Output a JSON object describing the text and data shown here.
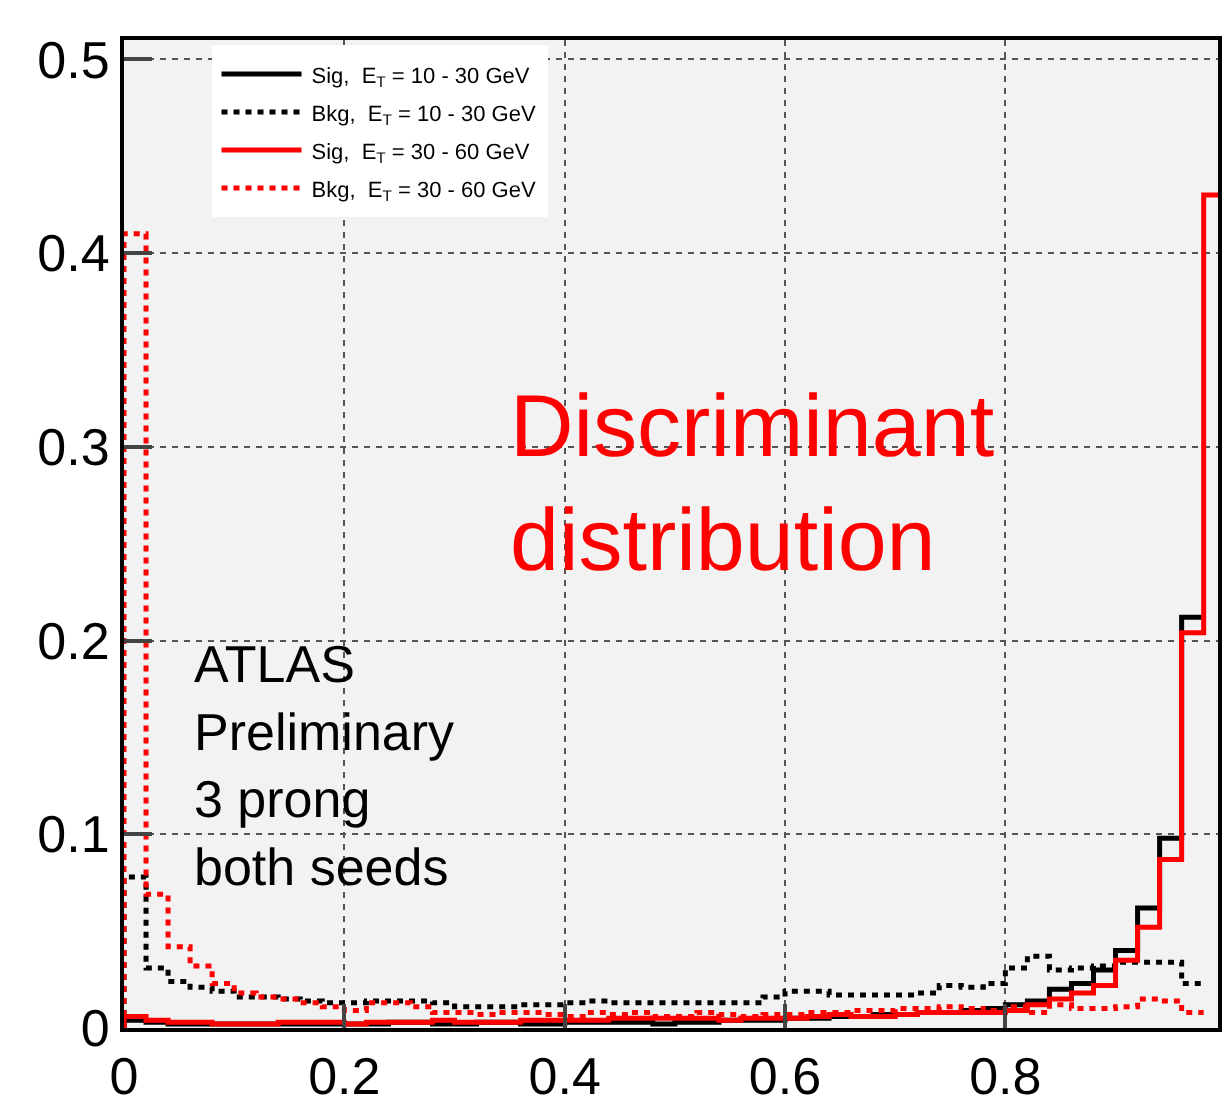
{
  "chart_data": {
    "type": "histogram",
    "bins": [
      0,
      0.02,
      0.04,
      0.06,
      0.08,
      0.1,
      0.12,
      0.14,
      0.16,
      0.18,
      0.2,
      0.22,
      0.24,
      0.26,
      0.28,
      0.3,
      0.32,
      0.34,
      0.36,
      0.38,
      0.4,
      0.42,
      0.44,
      0.46,
      0.48,
      0.5,
      0.52,
      0.54,
      0.56,
      0.58,
      0.6,
      0.62,
      0.64,
      0.66,
      0.68,
      0.7,
      0.72,
      0.74,
      0.76,
      0.78,
      0.8,
      0.82,
      0.84,
      0.86,
      0.88,
      0.9,
      0.92,
      0.94,
      0.96,
      0.98,
      1.0
    ],
    "series": [
      {
        "name": "Sig,  E$_{T}$ = 10 - 30 GeV",
        "color": "#000000",
        "line_style": "solid",
        "bins": [
          0,
          0.02,
          0.04,
          0.06,
          0.08,
          0.1,
          0.12,
          0.14,
          0.16,
          0.18,
          0.2,
          0.22,
          0.24,
          0.26,
          0.28,
          0.3,
          0.32,
          0.34,
          0.36,
          0.38,
          0.4,
          0.42,
          0.44,
          0.46,
          0.48,
          0.5,
          0.52,
          0.54,
          0.56,
          0.58,
          0.6,
          0.62,
          0.64,
          0.66,
          0.68,
          0.7,
          0.72,
          0.74,
          0.76,
          0.78,
          0.8,
          0.82,
          0.84,
          0.86,
          0.88,
          0.9,
          0.92,
          0.94,
          0.96,
          0.98
        ],
        "values": [
          0.004,
          0.003,
          0.002,
          0.002,
          0.002,
          0.002,
          0.002,
          0.002,
          0.002,
          0.002,
          0.002,
          0.002,
          0.003,
          0.003,
          0.002,
          0.002,
          0.003,
          0.003,
          0.002,
          0.002,
          0.003,
          0.003,
          0.003,
          0.003,
          0.002,
          0.003,
          0.003,
          0.004,
          0.004,
          0.004,
          0.005,
          0.005,
          0.006,
          0.006,
          0.007,
          0.007,
          0.008,
          0.008,
          0.009,
          0.01,
          0.012,
          0.014,
          0.02,
          0.023,
          0.03,
          0.04,
          0.062,
          0.098,
          0.212
        ]
      },
      {
        "name": "Bkg,  E$_{T}$ = 10 - 30 GeV",
        "color": "#000000",
        "line_style": "dotted",
        "bins": [
          0,
          0.02,
          0.04,
          0.06,
          0.08,
          0.1,
          0.12,
          0.14,
          0.16,
          0.18,
          0.2,
          0.22,
          0.24,
          0.26,
          0.28,
          0.3,
          0.32,
          0.34,
          0.36,
          0.38,
          0.4,
          0.42,
          0.44,
          0.46,
          0.48,
          0.5,
          0.52,
          0.54,
          0.56,
          0.58,
          0.6,
          0.62,
          0.64,
          0.66,
          0.68,
          0.7,
          0.72,
          0.74,
          0.76,
          0.78,
          0.8,
          0.82,
          0.84,
          0.86,
          0.88,
          0.9,
          0.92,
          0.94,
          0.96,
          0.98
        ],
        "values": [
          0.078,
          0.031,
          0.024,
          0.021,
          0.019,
          0.016,
          0.016,
          0.015,
          0.014,
          0.013,
          0.013,
          0.014,
          0.014,
          0.014,
          0.013,
          0.011,
          0.011,
          0.011,
          0.012,
          0.012,
          0.013,
          0.014,
          0.013,
          0.013,
          0.013,
          0.013,
          0.013,
          0.013,
          0.013,
          0.016,
          0.019,
          0.019,
          0.017,
          0.017,
          0.017,
          0.017,
          0.018,
          0.022,
          0.021,
          0.023,
          0.031,
          0.037,
          0.03,
          0.031,
          0.032,
          0.034,
          0.034,
          0.034,
          0.023
        ]
      },
      {
        "name": "Sig,  E$_{T}$ = 30 - 60 GeV",
        "color": "#ff0000",
        "line_style": "solid",
        "values": [
          0.006,
          0.004,
          0.003,
          0.003,
          0.002,
          0.002,
          0.002,
          0.003,
          0.003,
          0.003,
          0.002,
          0.003,
          0.003,
          0.003,
          0.004,
          0.003,
          0.003,
          0.003,
          0.004,
          0.004,
          0.004,
          0.004,
          0.005,
          0.005,
          0.005,
          0.005,
          0.005,
          0.004,
          0.005,
          0.005,
          0.005,
          0.006,
          0.007,
          0.006,
          0.006,
          0.007,
          0.008,
          0.008,
          0.008,
          0.008,
          0.009,
          0.012,
          0.015,
          0.018,
          0.022,
          0.035,
          0.052,
          0.087,
          0.204,
          0.43
        ]
      },
      {
        "name": "Bkg,  E$_{T}$ = 30 - 60 GeV",
        "color": "#ff0000",
        "line_style": "dotted",
        "bins": [
          0,
          0.02,
          0.04,
          0.06,
          0.08,
          0.1,
          0.12,
          0.14,
          0.16,
          0.18,
          0.2,
          0.22,
          0.24,
          0.26,
          0.28,
          0.3,
          0.32,
          0.34,
          0.36,
          0.38,
          0.4,
          0.42,
          0.44,
          0.46,
          0.48,
          0.5,
          0.52,
          0.54,
          0.56,
          0.58,
          0.6,
          0.62,
          0.64,
          0.66,
          0.68,
          0.7,
          0.72,
          0.74,
          0.76,
          0.78,
          0.8,
          0.82,
          0.84,
          0.86,
          0.88,
          0.9,
          0.92,
          0.94,
          0.96,
          0.98
        ],
        "values": [
          0.41,
          0.069,
          0.042,
          0.032,
          0.023,
          0.018,
          0.016,
          0.015,
          0.013,
          0.011,
          0.009,
          0.013,
          0.013,
          0.011,
          0.008,
          0.008,
          0.007,
          0.008,
          0.008,
          0.007,
          0.006,
          0.008,
          0.007,
          0.008,
          0.006,
          0.006,
          0.008,
          0.007,
          0.006,
          0.007,
          0.007,
          0.008,
          0.008,
          0.009,
          0.009,
          0.01,
          0.01,
          0.011,
          0.01,
          0.009,
          0.011,
          0.008,
          0.012,
          0.01,
          0.01,
          0.011,
          0.015,
          0.014,
          0.008
        ]
      }
    ],
    "xlim": [
      0,
      0.993
    ],
    "ylim": [
      0,
      0.51
    ],
    "xticks": [
      0,
      0.2,
      0.4,
      0.6,
      0.8
    ],
    "yticks": [
      0,
      0.1,
      0.2,
      0.3,
      0.4,
      0.5
    ],
    "grid": true,
    "legend": "top left",
    "annotations": [
      "ATLAS\nPreliminary\n3 prong\nboth seeds",
      "Discriminant\ndistribution"
    ]
  }
}
